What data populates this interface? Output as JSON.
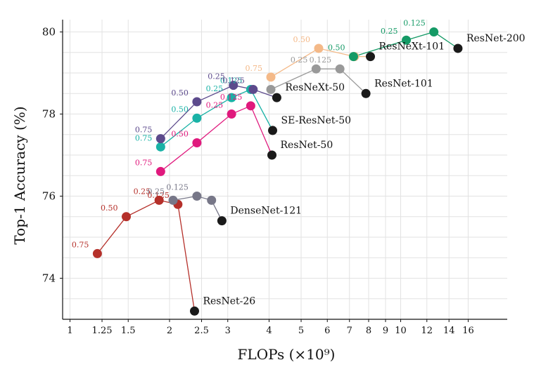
{
  "chart_data": {
    "type": "scatter",
    "title": "",
    "xlabel": "FLOPs (×10⁹)",
    "ylabel": "Top-1 Accuracy (%)",
    "x_scale": "log",
    "xlim": [
      0.95,
      21
    ],
    "ylim": [
      73,
      80.3
    ],
    "x_ticks": [
      1,
      1.25,
      1.5,
      2,
      2.5,
      3,
      4,
      5,
      6,
      7,
      8,
      9,
      10,
      12,
      14,
      16
    ],
    "x_tick_labels": [
      "1",
      "1.25",
      "1.5",
      "2",
      "2.5",
      "3",
      "4",
      "5",
      "6",
      "7",
      "8",
      "9",
      "10",
      "12",
      "14",
      "16"
    ],
    "y_ticks": [
      74,
      76,
      78,
      80
    ],
    "y_tick_labels": [
      "74",
      "76",
      "78",
      "80"
    ],
    "grid": true,
    "legend": "none",
    "series": [
      {
        "name": "ResNet-26",
        "color": "#b5302a",
        "points": [
          {
            "x": 1.21,
            "y": 74.6,
            "label": "0.75"
          },
          {
            "x": 1.48,
            "y": 75.5,
            "label": "0.50"
          },
          {
            "x": 1.86,
            "y": 75.9,
            "label": "0.25"
          },
          {
            "x": 2.12,
            "y": 75.8,
            "label": "0.125"
          },
          {
            "x": 2.38,
            "y": 73.2,
            "label": ""
          }
        ]
      },
      {
        "name": "DenseNet-121",
        "color": "#777788",
        "points": [
          {
            "x": 2.05,
            "y": 75.9,
            "label": "0.25"
          },
          {
            "x": 2.42,
            "y": 76.0,
            "label": "0.125"
          },
          {
            "x": 2.68,
            "y": 75.9,
            "label": ""
          },
          {
            "x": 2.88,
            "y": 75.4,
            "label": ""
          }
        ]
      },
      {
        "name": "ResNet-50",
        "color": "#e0197d",
        "points": [
          {
            "x": 1.88,
            "y": 76.6,
            "label": "0.75"
          },
          {
            "x": 2.42,
            "y": 77.3,
            "label": "0.50"
          },
          {
            "x": 3.08,
            "y": 78.0,
            "label": "0.25"
          },
          {
            "x": 3.52,
            "y": 78.2,
            "label": "0.125"
          },
          {
            "x": 4.08,
            "y": 77.0,
            "label": ""
          }
        ]
      },
      {
        "name": "SE-ResNet-50",
        "color": "#19b2a6",
        "points": [
          {
            "x": 1.88,
            "y": 77.2,
            "label": "0.75"
          },
          {
            "x": 2.42,
            "y": 77.9,
            "label": "0.50"
          },
          {
            "x": 3.08,
            "y": 78.4,
            "label": "0.25"
          },
          {
            "x": 3.52,
            "y": 78.6,
            "label": "0.125"
          },
          {
            "x": 4.1,
            "y": 77.6,
            "label": ""
          }
        ]
      },
      {
        "name": "ResNeXt-50",
        "color": "#5c4a8c",
        "points": [
          {
            "x": 1.88,
            "y": 77.4,
            "label": "0.75"
          },
          {
            "x": 2.42,
            "y": 78.3,
            "label": "0.50"
          },
          {
            "x": 3.12,
            "y": 78.7,
            "label": "0.25"
          },
          {
            "x": 3.58,
            "y": 78.6,
            "label": "0.125"
          },
          {
            "x": 4.22,
            "y": 78.4,
            "label": ""
          }
        ]
      },
      {
        "name": "ResNet-101",
        "color": "#999999",
        "points": [
          {
            "x": 4.05,
            "y": 78.6,
            "label": ""
          },
          {
            "x": 5.55,
            "y": 79.1,
            "label": "0.25"
          },
          {
            "x": 6.55,
            "y": 79.1,
            "label": "0.125"
          },
          {
            "x": 7.85,
            "y": 78.5,
            "label": ""
          }
        ]
      },
      {
        "name": "ResNeXt-101",
        "color": "#f4b988",
        "points": [
          {
            "x": 4.05,
            "y": 78.9,
            "label": "0.75"
          },
          {
            "x": 5.65,
            "y": 79.6,
            "label": "0.50"
          },
          {
            "x": 7.25,
            "y": 79.4,
            "label": ""
          },
          {
            "x": 8.1,
            "y": 79.4,
            "label": ""
          }
        ]
      },
      {
        "name": "ResNet-200",
        "color": "#159a66",
        "points": [
          {
            "x": 7.2,
            "y": 79.4,
            "label": "0.50"
          },
          {
            "x": 10.4,
            "y": 79.8,
            "label": "0.25"
          },
          {
            "x": 12.6,
            "y": 80.0,
            "label": "0.125"
          },
          {
            "x": 14.9,
            "y": 79.6,
            "label": ""
          }
        ]
      }
    ],
    "baselines": [
      {
        "name": "ResNet-26",
        "x": 2.38,
        "y": 73.2
      },
      {
        "name": "DenseNet-121",
        "x": 2.88,
        "y": 75.4
      },
      {
        "name": "ResNet-50",
        "x": 4.08,
        "y": 77.0
      },
      {
        "name": "SE-ResNet-50",
        "x": 4.1,
        "y": 77.6
      },
      {
        "name": "ResNeXt-50",
        "x": 4.22,
        "y": 78.4
      },
      {
        "name": "ResNet-101",
        "x": 7.85,
        "y": 78.5
      },
      {
        "name": "ResNeXt-101",
        "x": 8.1,
        "y": 79.4
      },
      {
        "name": "ResNet-200",
        "x": 14.9,
        "y": 79.6
      }
    ],
    "annotations": [
      "ResNet-26",
      "DenseNet-121",
      "ResNet-50",
      "SE-ResNet-50",
      "ResNeXt-50",
      "ResNet-101",
      "ResNeXt-101",
      "ResNet-200"
    ]
  }
}
